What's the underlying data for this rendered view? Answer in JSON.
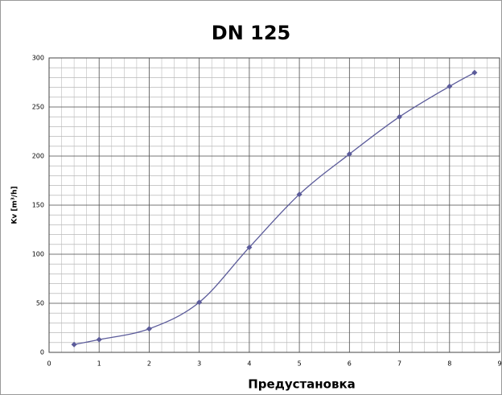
{
  "chart_data": {
    "type": "line",
    "title": "DN 125",
    "xlabel": "Предустановка",
    "ylabel": "Kv [m³/h]",
    "x": [
      0.5,
      1,
      2,
      3,
      4,
      5,
      6,
      7,
      8,
      8.5
    ],
    "series": [
      {
        "name": "DN 125",
        "color": "#5b5b9a",
        "values": [
          8,
          13,
          24,
          51,
          107,
          161,
          202,
          240,
          271,
          285
        ]
      }
    ],
    "xlim": [
      0,
      9
    ],
    "xticks": [
      0,
      1,
      2,
      3,
      4,
      5,
      6,
      7,
      8,
      9
    ],
    "ylim": [
      0,
      300
    ],
    "yticks": [
      0,
      50,
      100,
      150,
      200,
      250,
      300
    ],
    "grid": true
  }
}
